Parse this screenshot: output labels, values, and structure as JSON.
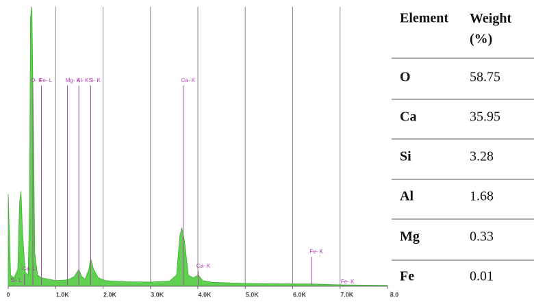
{
  "chart_data": {
    "type": "area",
    "color": "#5fd04f",
    "x": [
      0,
      0.05,
      0.12,
      0.2,
      0.24,
      0.27,
      0.3,
      0.36,
      0.42,
      0.45,
      0.47,
      0.5,
      0.53,
      0.56,
      0.62,
      0.7,
      0.85,
      1.0,
      1.2,
      1.3,
      1.4,
      1.45,
      1.49,
      1.55,
      1.62,
      1.7,
      1.74,
      1.8,
      1.9,
      2.05,
      2.5,
      3.0,
      3.4,
      3.55,
      3.62,
      3.66,
      3.72,
      3.8,
      3.9,
      4.01,
      4.1,
      4.3,
      5.0,
      6.0,
      6.4,
      7.0,
      8.0
    ],
    "values": [
      33,
      4,
      3,
      6,
      30,
      34,
      20,
      5,
      4,
      30,
      96,
      100,
      60,
      12,
      4,
      3,
      2.5,
      2,
      2.2,
      2.6,
      3.5,
      5,
      6,
      3.5,
      2.5,
      6,
      10,
      6,
      3,
      2,
      1.6,
      1.5,
      1.8,
      4,
      18,
      21,
      16,
      4,
      3,
      4,
      2,
      1.4,
      1,
      0.8,
      0.8,
      0.5,
      0.3
    ],
    "xlim": [
      0,
      8
    ],
    "ylim": [
      0,
      100
    ],
    "xticks": [
      0,
      {
        "value": 1,
        "label": "1.0K"
      },
      {
        "value": 2,
        "label": "2.0K"
      },
      {
        "value": 3,
        "label": "3.0K"
      },
      {
        "value": 4,
        "label": "4.0K"
      },
      {
        "value": 5,
        "label": "5.0K"
      },
      {
        "value": 6,
        "label": "6.0K"
      },
      {
        "value": 7,
        "label": "7.0K"
      },
      {
        "value": 8,
        "label": "8.0"
      }
    ],
    "grid": true,
    "markers": [
      {
        "label": "O- K",
        "x": 0.52
      },
      {
        "label": "Fe- L",
        "x": 0.7
      },
      {
        "label": "Mg- K",
        "x": 1.25
      },
      {
        "label": "Al- K",
        "x": 1.49
      },
      {
        "label": "Si- K",
        "x": 1.74
      },
      {
        "label": "Ca- K",
        "x": 3.69
      },
      {
        "label": "Ca- K",
        "x": 4.01
      },
      {
        "label": "Fe- K",
        "x": 6.4
      },
      {
        "label": "Fe- K",
        "x": 7.06
      },
      {
        "label": "Si- L",
        "x": 0.09
      },
      {
        "label": "Ca- L",
        "x": 0.34
      }
    ]
  },
  "table": {
    "header": [
      "Element",
      "Weight (%)"
    ],
    "rows": [
      [
        "O",
        "58.75"
      ],
      [
        "Ca",
        "35.95"
      ],
      [
        "Si",
        "3.28"
      ],
      [
        "Al",
        "1.68"
      ],
      [
        "Mg",
        "0.33"
      ],
      [
        "Fe",
        "0.01"
      ]
    ]
  }
}
